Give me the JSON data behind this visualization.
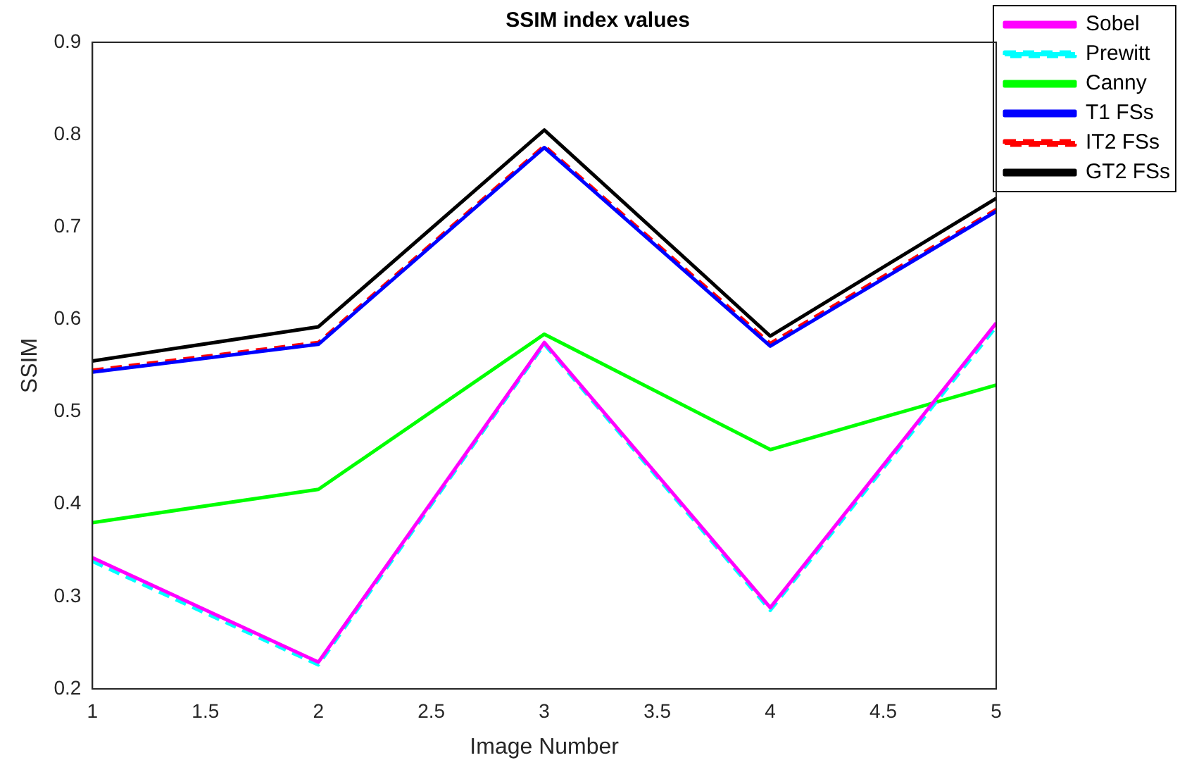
{
  "chart_data": {
    "type": "line",
    "title": "SSIM index values",
    "xlabel": "Image Number",
    "ylabel": "SSIM",
    "x": [
      1,
      2,
      3,
      4,
      5
    ],
    "series": [
      {
        "name": "Sobel",
        "color": "#ff00ff",
        "line_style": "solid",
        "values": [
          0.342,
          0.229,
          0.575,
          0.288,
          0.596
        ]
      },
      {
        "name": "Prewitt",
        "color": "#00ffff",
        "line_style": "dashed",
        "values": [
          0.338,
          0.226,
          0.573,
          0.285,
          0.592
        ]
      },
      {
        "name": "Canny",
        "color": "#00ff00",
        "line_style": "solid",
        "values": [
          0.38,
          0.416,
          0.584,
          0.459,
          0.529
        ]
      },
      {
        "name": "T1 FSs",
        "color": "#0000ff",
        "line_style": "solid",
        "values": [
          0.543,
          0.573,
          0.786,
          0.571,
          0.717
        ]
      },
      {
        "name": "IT2 FSs",
        "color": "#ff0000",
        "line_style": "dashed",
        "values": [
          0.545,
          0.575,
          0.788,
          0.574,
          0.719
        ]
      },
      {
        "name": "GT2 FSs",
        "color": "#000000",
        "line_style": "solid",
        "values": [
          0.555,
          0.592,
          0.805,
          0.582,
          0.731
        ]
      }
    ],
    "xlim": [
      1,
      5
    ],
    "xticks": [
      1,
      1.5,
      2,
      2.5,
      3,
      3.5,
      4,
      4.5,
      5
    ],
    "ylim": [
      0.2,
      0.9
    ],
    "yticks": [
      0.2,
      0.3,
      0.4,
      0.5,
      0.6,
      0.7,
      0.8,
      0.9
    ],
    "grid": false,
    "legend": "right",
    "marker": "none"
  }
}
